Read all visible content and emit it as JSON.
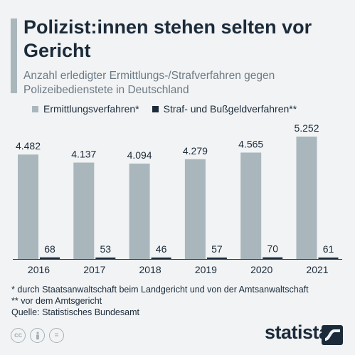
{
  "title": "Polizist:innen stehen selten vor Gericht",
  "subtitle": "Anzahl erledigter Ermittlungs-/Strafverfahren gegen Polizeibedienstete in Deutschland",
  "footnotes": [
    "*  durch Staatsanwaltschaft beim Landgericht und von der Amtsanwaltschaft",
    "** vor dem Amtsgericht",
    "Quelle: Statistisches Bundesamt"
  ],
  "brand": "statista",
  "cc_icons": [
    "cc",
    "by",
    "="
  ],
  "colors": {
    "series1": "#a9b7bd",
    "series2": "#1c2b3a",
    "accent": "#a9b7bd",
    "text": "#1c2b3a",
    "subtext": "#6d7a83"
  },
  "chart_data": {
    "type": "bar",
    "categories": [
      "2016",
      "2017",
      "2018",
      "2019",
      "2020",
      "2021"
    ],
    "series": [
      {
        "name": "Ermittlungsverfahren*",
        "values": [
          4482,
          4137,
          4094,
          4279,
          4565,
          5252
        ],
        "labels": [
          "4.482",
          "4.137",
          "4.094",
          "4.279",
          "4.565",
          "5.252"
        ]
      },
      {
        "name": "Straf- und Bußgeldverfahren**",
        "values": [
          68,
          53,
          46,
          57,
          70,
          61
        ],
        "labels": [
          "68",
          "53",
          "46",
          "57",
          "70",
          "61"
        ]
      }
    ],
    "title": "Polizist:innen stehen selten vor Gericht",
    "xlabel": "",
    "ylabel": "",
    "ylim": [
      0,
      5252
    ],
    "grid": false,
    "legend": "top-left"
  }
}
